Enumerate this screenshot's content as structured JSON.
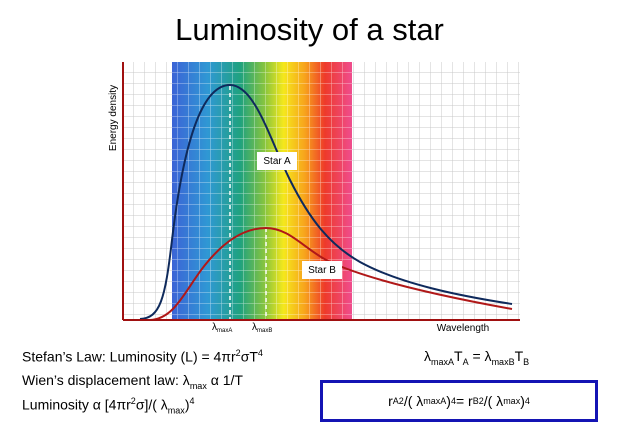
{
  "title": "Luminosity of a star",
  "axes": {
    "y_label": "Energy density",
    "x_label": "Wavelength"
  },
  "curves": {
    "star_a": "Star A",
    "star_b": "Star B"
  },
  "markers": [
    {
      "symbol": "λ",
      "sub": "maxA"
    },
    {
      "symbol": "λ",
      "sub": "maxB"
    }
  ],
  "formulas": {
    "stefan": [
      "Stefan’s Law: Luminosity (L) = 4πr",
      "2",
      "σT",
      "4"
    ],
    "wien": [
      "Wien’s displacement law: λ",
      "max",
      " α 1/T"
    ],
    "luminosity": [
      "Luminosity α [4πr",
      "2",
      "σ]/( λ",
      "max",
      ")",
      "4"
    ],
    "ratio": [
      "λ",
      "maxA",
      "T",
      "A",
      " = λ",
      "maxB",
      "T",
      "B"
    ],
    "boxed": [
      "r",
      "A",
      "2",
      "/( λ",
      "maxA",
      ")",
      "4",
      " = r",
      "B",
      "2",
      "/( λ",
      "max",
      ")",
      "4"
    ]
  }
}
